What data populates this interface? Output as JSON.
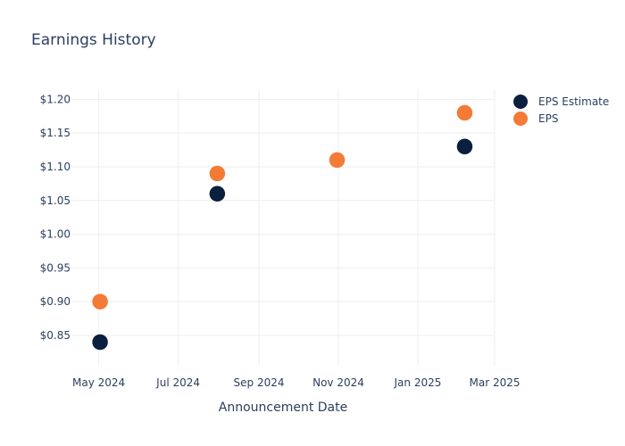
{
  "chart_data": {
    "type": "scatter",
    "title": "Earnings History",
    "xlabel": "Announcement Date",
    "ylabel": "",
    "x_ticks": [
      {
        "date": "2024-05-01",
        "label": "May 2024"
      },
      {
        "date": "2024-07-01",
        "label": "Jul 2024"
      },
      {
        "date": "2024-09-01",
        "label": "Sep 2024"
      },
      {
        "date": "2024-11-01",
        "label": "Nov 2024"
      },
      {
        "date": "2025-01-01",
        "label": "Jan 2025"
      },
      {
        "date": "2025-03-01",
        "label": "Mar 2025"
      }
    ],
    "xlim": [
      "2024-04-10",
      "2025-03-01"
    ],
    "y_ticks": [
      {
        "value": 0.85,
        "label": "$0.85"
      },
      {
        "value": 0.9,
        "label": "$0.90"
      },
      {
        "value": 0.95,
        "label": "$0.95"
      },
      {
        "value": 1.0,
        "label": "$1.00"
      },
      {
        "value": 1.05,
        "label": "$1.05"
      },
      {
        "value": 1.1,
        "label": "$1.10"
      },
      {
        "value": 1.15,
        "label": "$1.15"
      },
      {
        "value": 1.2,
        "label": "$1.20"
      }
    ],
    "ylim": [
      0.805,
      1.215
    ],
    "grid": true,
    "legend_position": "top-right",
    "series": [
      {
        "name": "EPS Estimate",
        "color": "#0b1f3f",
        "points": [
          {
            "x": "2024-05-02",
            "y": 0.84
          },
          {
            "x": "2024-07-31",
            "y": 1.06
          },
          {
            "x": "2024-10-31",
            "y": 1.11
          },
          {
            "x": "2025-02-06",
            "y": 1.13
          }
        ]
      },
      {
        "name": "EPS",
        "color": "#f47b36",
        "points": [
          {
            "x": "2024-05-02",
            "y": 0.9
          },
          {
            "x": "2024-07-31",
            "y": 1.09
          },
          {
            "x": "2024-10-31",
            "y": 1.11
          },
          {
            "x": "2025-02-06",
            "y": 1.18
          }
        ]
      }
    ]
  }
}
